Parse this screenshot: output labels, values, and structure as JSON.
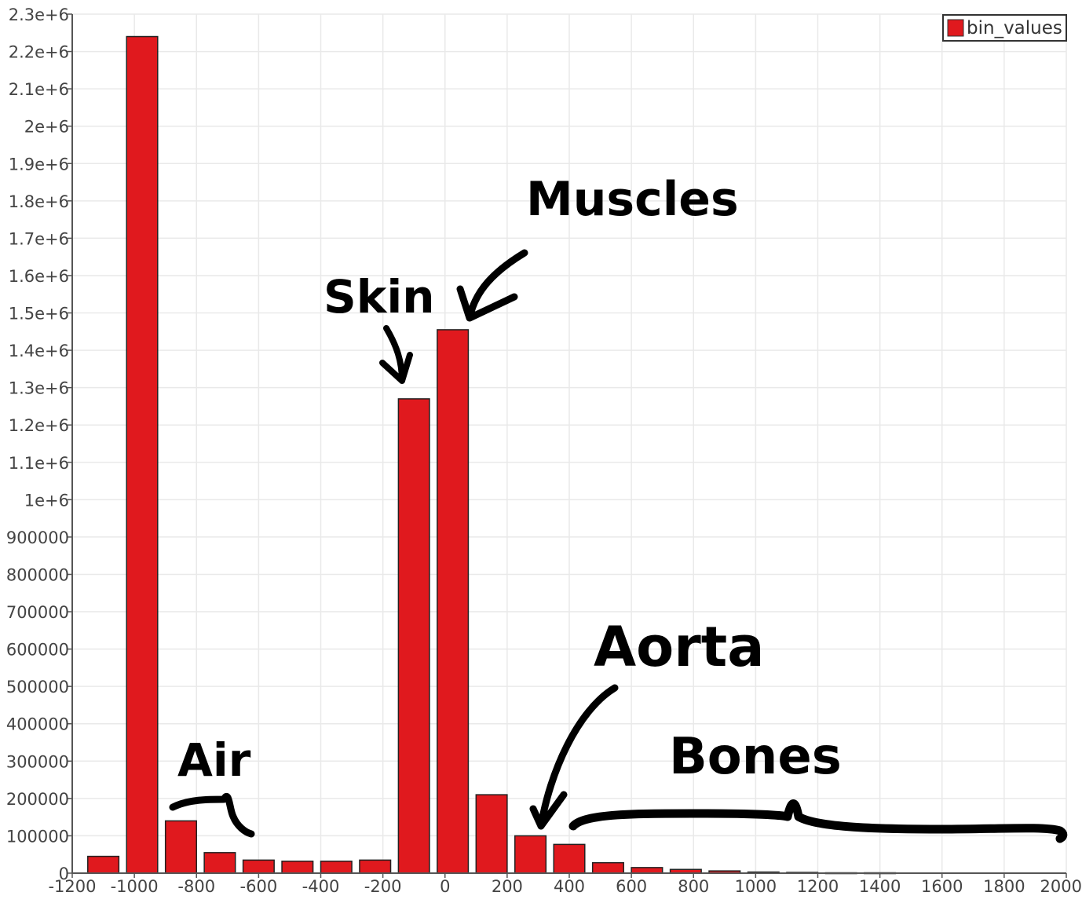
{
  "chart_data": {
    "type": "bar",
    "title": "",
    "xlabel": "",
    "ylabel": "",
    "xlim": [
      -1200,
      2000
    ],
    "ylim": [
      0,
      2300000
    ],
    "bin_width": 100,
    "grid": true,
    "legend_position": "top-right",
    "colors": {
      "bar": "#e0191e",
      "bar_stroke": "#222222",
      "grid": "#e9e9e9",
      "axis": "#555555"
    },
    "x_tick_labels": [
      "-1200",
      "-1000",
      "-800",
      "-600",
      "-400",
      "-200",
      "0",
      "200",
      "400",
      "600",
      "800",
      "1000",
      "1200",
      "1400",
      "1600",
      "1800",
      "2000"
    ],
    "y_tick_labels": [
      "0",
      "100000",
      "200000",
      "300000",
      "400000",
      "500000",
      "600000",
      "700000",
      "800000",
      "900000",
      "1e+6",
      "1.1e+6",
      "1.2e+6",
      "1.3e+6",
      "1.4e+6",
      "1.5e+6",
      "1.6e+6",
      "1.7e+6",
      "1.8e+6",
      "1.9e+6",
      "2e+6",
      "2.1e+6",
      "2.2e+6",
      "2.3e+6"
    ],
    "series": [
      {
        "name": "bin_values",
        "x": [
          -1100,
          -975,
          -850,
          -725,
          -600,
          -475,
          -350,
          -225,
          -100,
          25,
          150,
          275,
          400,
          525,
          650,
          775,
          900,
          1025,
          1150,
          1275,
          1400
        ],
        "values": [
          45000,
          2240000,
          140000,
          55000,
          35000,
          32000,
          32000,
          35000,
          1270000,
          1455000,
          210000,
          100000,
          77000,
          28000,
          15000,
          10000,
          6000,
          3000,
          2000,
          1000,
          1000
        ]
      }
    ],
    "annotations": [
      "Muscles",
      "Skin",
      "Air",
      "Aorta",
      "Bones"
    ]
  }
}
